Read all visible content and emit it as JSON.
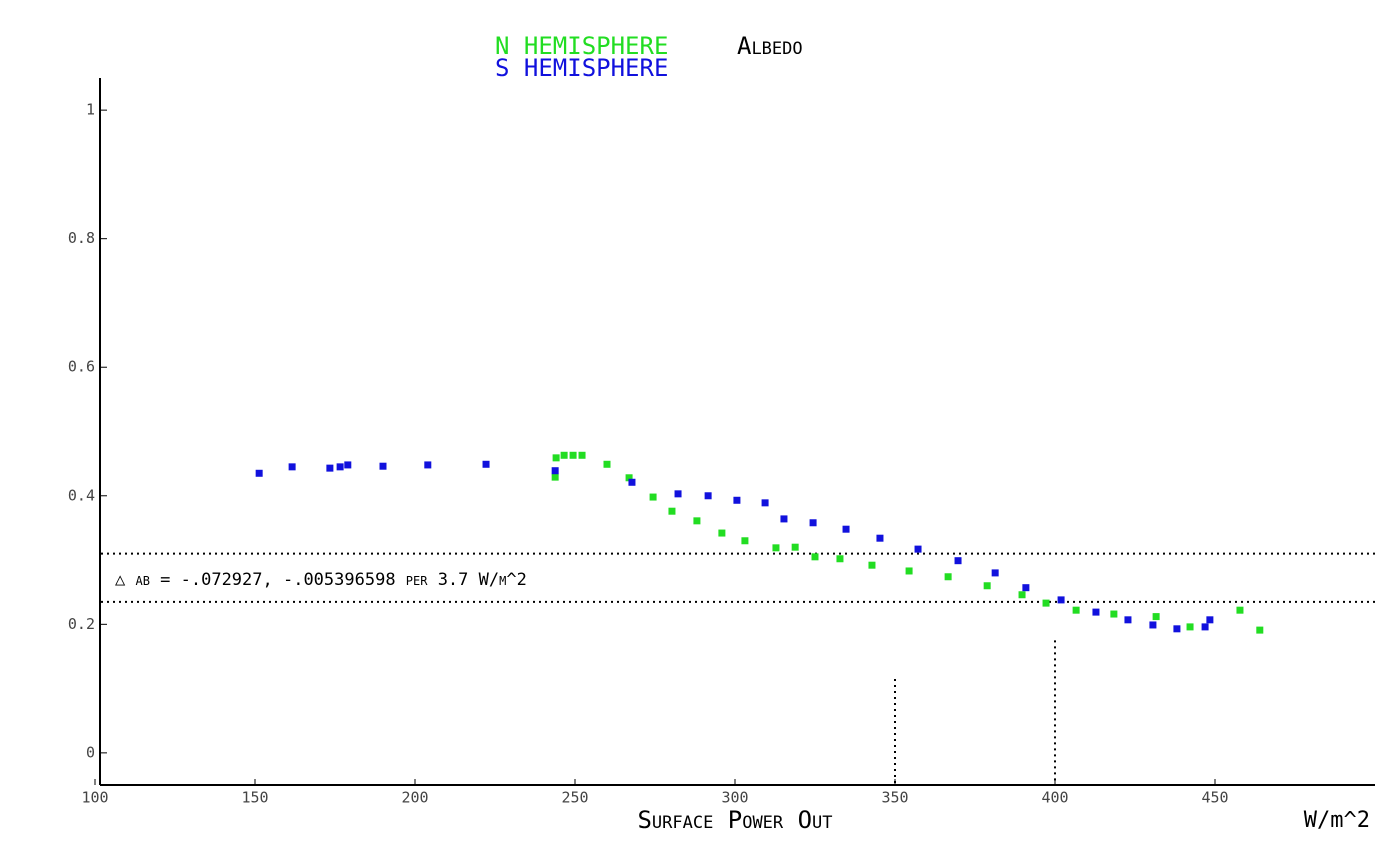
{
  "chart_data": {
    "type": "scatter",
    "title": "Albedo",
    "x_label": "Surface Power Out",
    "x_unit": "W/m^2",
    "annotation": "△ ab = -.072927, -.005396598 per 3.7 W/m^2",
    "xlim": [
      100,
      500
    ],
    "ylim": [
      -0.05,
      1.05
    ],
    "xticks": [
      100,
      150,
      200,
      250,
      300,
      350,
      400,
      450
    ],
    "yticks": [
      0,
      0.2,
      0.4,
      0.6,
      0.8,
      1
    ],
    "hlines": [
      0.31,
      0.235
    ],
    "vlines": [
      {
        "x": 350,
        "y": 0.115
      },
      {
        "x": 400,
        "y": 0.175
      }
    ],
    "series": [
      {
        "name": "N HEMISPHERE",
        "color": "#22dd22",
        "x": [
          243.8,
          244.1,
          246.6,
          249.4,
          252.2,
          260,
          266.9,
          274.4,
          280.3,
          288.1,
          295.9,
          303.1,
          312.8,
          318.8,
          325,
          332.8,
          342.8,
          354.4,
          366.6,
          378.8,
          389.7,
          397.2,
          406.6,
          418.4,
          431.6,
          442.2,
          457.8,
          464
        ],
        "values": [
          0.429,
          0.459,
          0.463,
          0.463,
          0.463,
          0.449,
          0.428,
          0.398,
          0.376,
          0.361,
          0.342,
          0.33,
          0.319,
          0.32,
          0.305,
          0.302,
          0.292,
          0.283,
          0.274,
          0.26,
          0.246,
          0.233,
          0.222,
          0.216,
          0.212,
          0.196,
          0.222,
          0.191
        ]
      },
      {
        "name": "S HEMISPHERE",
        "color": "#1111dd",
        "x": [
          151.3,
          161.6,
          173.4,
          176.6,
          179,
          190,
          204,
          222.2,
          243.8,
          267.8,
          282.2,
          291.6,
          300.6,
          309.4,
          315.3,
          324.4,
          334.7,
          345.3,
          357.2,
          369.7,
          381.3,
          390.9,
          401.9,
          412.8,
          422.8,
          430.6,
          438.1,
          446.9,
          448.4
        ],
        "values": [
          0.435,
          0.445,
          0.443,
          0.445,
          0.448,
          0.446,
          0.448,
          0.449,
          0.439,
          0.421,
          0.403,
          0.4,
          0.393,
          0.389,
          0.364,
          0.358,
          0.348,
          0.334,
          0.317,
          0.299,
          0.28,
          0.257,
          0.238,
          0.219,
          0.207,
          0.199,
          0.193,
          0.196,
          0.207
        ]
      }
    ]
  }
}
